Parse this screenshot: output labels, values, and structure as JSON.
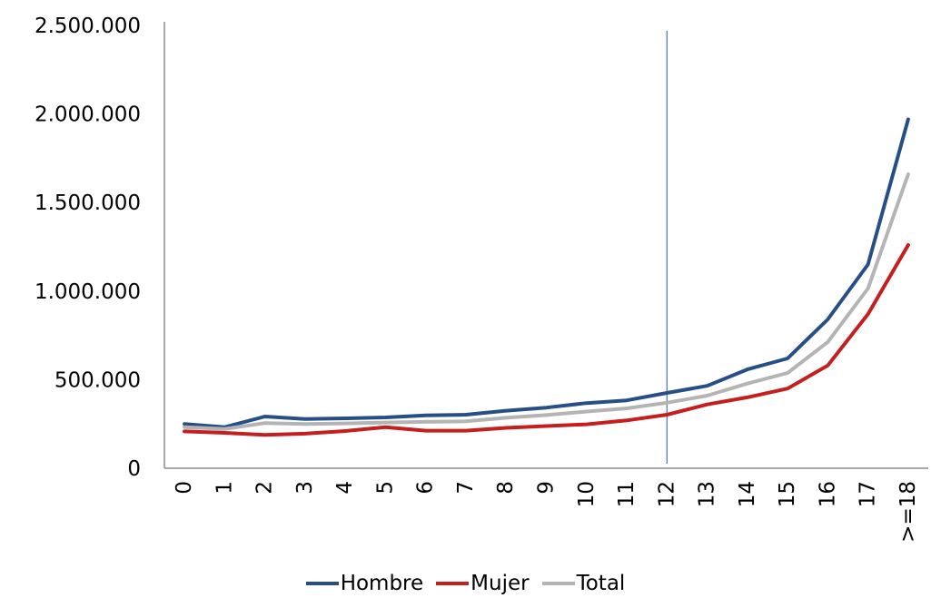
{
  "chart_data": {
    "type": "line",
    "title": "",
    "xlabel": "",
    "ylabel": "",
    "categories": [
      "0",
      "1",
      "2",
      "3",
      "4",
      "5",
      "6",
      "7",
      "8",
      "9",
      "10",
      "11",
      "12",
      "13",
      "14",
      "15",
      "16",
      "17",
      ">=18"
    ],
    "ylim": [
      0,
      2500000
    ],
    "yticks": [
      0,
      500000,
      1000000,
      1500000,
      2000000,
      2500000
    ],
    "ytick_labels": [
      "0",
      "500.000",
      "1.000.000",
      "1.500.000",
      "2.000.000",
      "2.500.000"
    ],
    "grid": false,
    "legend_position": "bottom",
    "reference_line": {
      "category": "12",
      "color": "#4472c4"
    },
    "series": [
      {
        "name": "Hombre",
        "color": "#264f87",
        "values": [
          250000,
          232000,
          292000,
          278000,
          282000,
          287000,
          298000,
          302000,
          325000,
          342000,
          368000,
          383000,
          425000,
          465000,
          558000,
          620000,
          840000,
          1150000,
          1970000
        ]
      },
      {
        "name": "Mujer",
        "color": "#c41e1e",
        "values": [
          208000,
          200000,
          188000,
          195000,
          210000,
          232000,
          212000,
          212000,
          228000,
          238000,
          248000,
          270000,
          302000,
          360000,
          400000,
          450000,
          580000,
          870000,
          1260000
        ]
      },
      {
        "name": "Total",
        "color": "#b4b4b4",
        "values": [
          232000,
          222000,
          255000,
          250000,
          253000,
          258000,
          262000,
          265000,
          285000,
          300000,
          320000,
          338000,
          370000,
          410000,
          478000,
          538000,
          712000,
          1015000,
          1660000
        ]
      }
    ]
  }
}
